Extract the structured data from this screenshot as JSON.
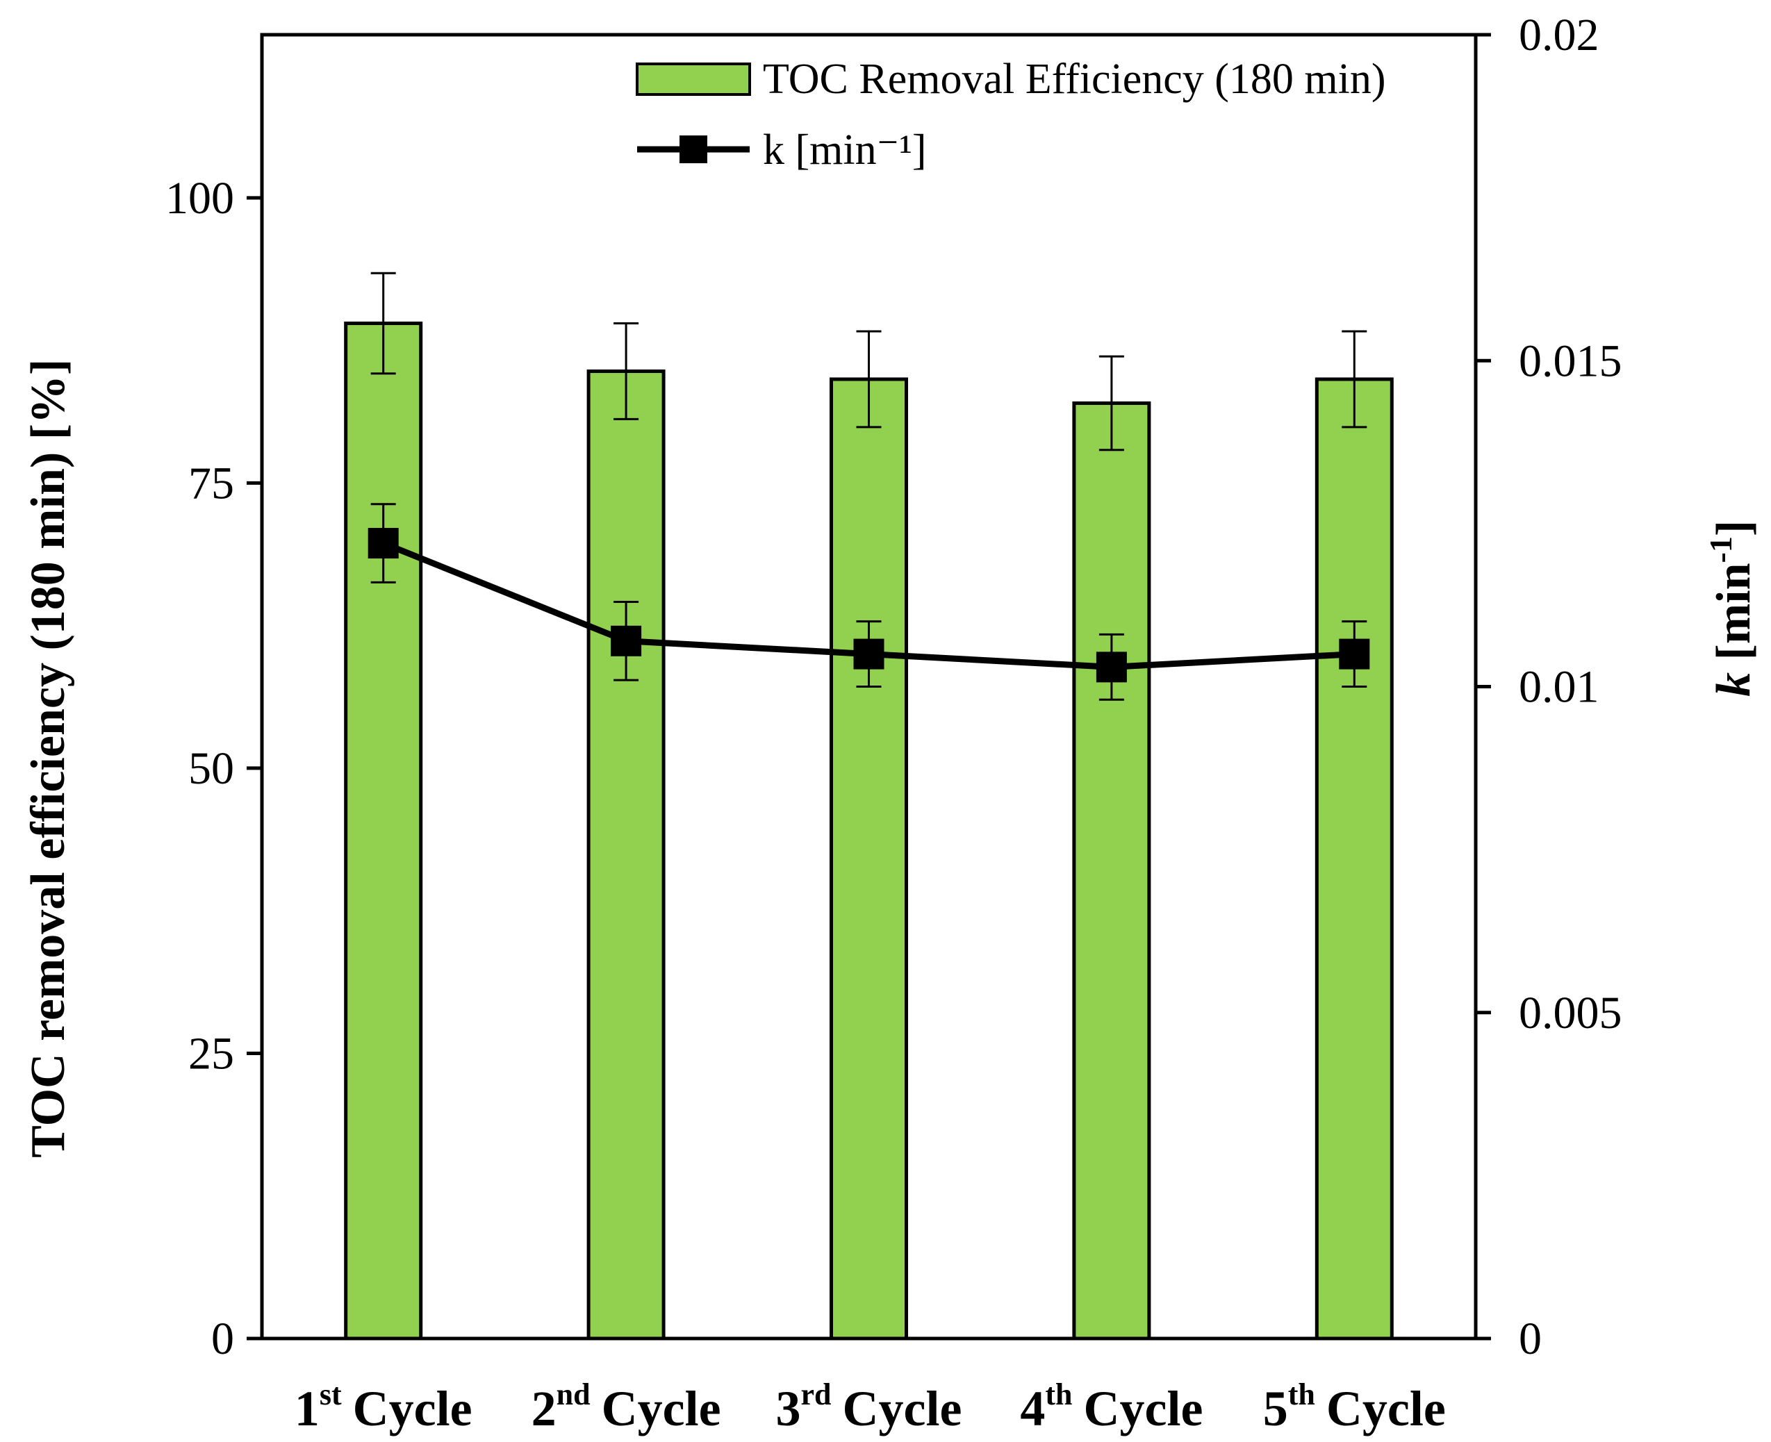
{
  "chart_data": {
    "type": "bar+line",
    "categories": [
      {
        "num": "1",
        "sup": "st",
        "word": "Cycle"
      },
      {
        "num": "2",
        "sup": "nd",
        "word": "Cycle"
      },
      {
        "num": "3",
        "sup": "rd",
        "word": "Cycle"
      },
      {
        "num": "4",
        "sup": "th",
        "word": "Cycle"
      },
      {
        "num": "5",
        "sup": "th",
        "word": "Cycle"
      }
    ],
    "series": [
      {
        "name": "TOC Removal Efficiency (180 min)",
        "axis": "left",
        "kind": "bar",
        "values": [
          89.0,
          84.8,
          84.1,
          82.0,
          84.1
        ],
        "errors": [
          4.4,
          4.2,
          4.2,
          4.1,
          4.2
        ],
        "color": "#92d050"
      },
      {
        "name": "k [min⁻¹]",
        "axis": "right",
        "kind": "line",
        "values": [
          0.0122,
          0.0107,
          0.0105,
          0.0103,
          0.0105
        ],
        "errors": [
          0.0006,
          0.0006,
          0.0005,
          0.0005,
          0.0005
        ],
        "color": "#000000"
      }
    ],
    "left_axis": {
      "label": "TOC removal efficiency (180 min) [%]",
      "range": [
        0,
        114.3
      ],
      "ticks": [
        0,
        25,
        50,
        75,
        100
      ],
      "tick_labels": [
        "0",
        "25",
        "50",
        "75",
        "100"
      ]
    },
    "right_axis": {
      "label_italic": "k",
      "label_rest": " [min",
      "label_sup": "-1",
      "label_close": "]",
      "range": [
        0,
        0.02
      ],
      "ticks": [
        0,
        0.005,
        0.01,
        0.015,
        0.02
      ],
      "tick_labels": [
        "0",
        "0.005",
        "0.01",
        "0.015",
        "0.02"
      ]
    },
    "legend": {
      "position": "top-right",
      "entries": [
        "TOC Removal Efficiency (180 min)",
        "k [min⁻¹]"
      ]
    }
  }
}
